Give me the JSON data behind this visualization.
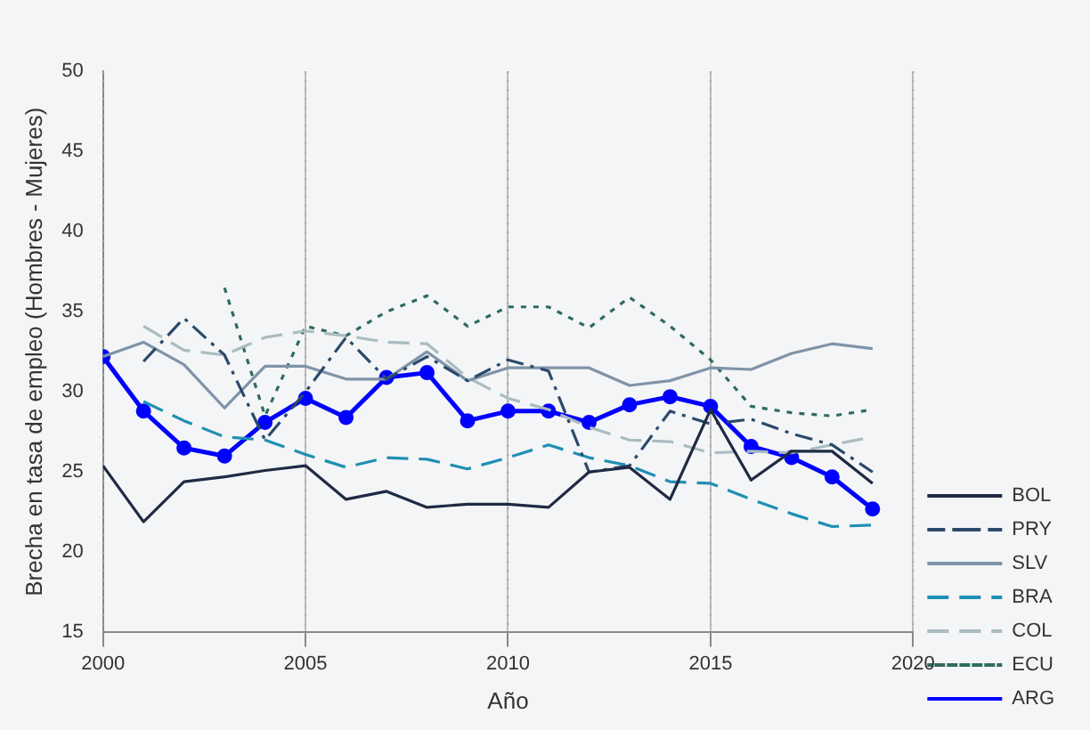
{
  "chart_data": {
    "type": "line",
    "xlabel": "Año",
    "ylabel": "Brecha en tasa de empleo (Hombres - Mujeres)",
    "x": [
      2000,
      2001,
      2002,
      2003,
      2004,
      2005,
      2006,
      2007,
      2008,
      2009,
      2010,
      2011,
      2012,
      2013,
      2014,
      2015,
      2016,
      2017,
      2018,
      2019
    ],
    "series": [
      {
        "name": "BOL",
        "color": "#1f2a44",
        "line_style": "solid",
        "values": [
          25.4,
          21.9,
          24.4,
          24.7,
          25.1,
          25.4,
          23.3,
          23.8,
          22.8,
          23.0,
          23.0,
          22.8,
          25.0,
          25.3,
          23.3,
          28.9,
          24.5,
          26.3,
          26.3,
          24.3
        ]
      },
      {
        "name": "PRY",
        "color": "#2b4a6b",
        "line_style": "dashdot",
        "values": [
          null,
          31.9,
          34.6,
          32.3,
          27.0,
          30.0,
          33.4,
          30.8,
          32.2,
          30.7,
          32.0,
          31.3,
          25.0,
          25.4,
          28.8,
          28.0,
          28.3,
          27.4,
          26.7,
          25.0
        ]
      },
      {
        "name": "SLV",
        "color": "#7f93a8",
        "line_style": "solid",
        "values": [
          32.2,
          33.1,
          31.7,
          29.0,
          31.6,
          31.6,
          30.8,
          30.8,
          32.5,
          30.7,
          31.5,
          31.5,
          31.5,
          30.4,
          30.7,
          31.5,
          31.4,
          32.4,
          33.0,
          32.7
        ]
      },
      {
        "name": "BRA",
        "color": "#1f8fb3",
        "line_style": "dashed",
        "values": [
          null,
          29.4,
          28.2,
          27.2,
          27.0,
          26.1,
          25.3,
          25.9,
          25.8,
          25.2,
          25.9,
          26.7,
          25.9,
          25.4,
          24.4,
          24.3,
          23.3,
          22.4,
          21.6,
          21.7
        ]
      },
      {
        "name": "COL",
        "color": "#a9bcc0",
        "line_style": "dashed",
        "values": [
          null,
          34.1,
          32.6,
          32.3,
          33.4,
          33.8,
          33.5,
          33.1,
          33.0,
          30.9,
          29.6,
          28.9,
          27.8,
          27.0,
          26.9,
          26.2,
          26.3,
          26.2,
          26.7,
          27.2
        ]
      },
      {
        "name": "ECU",
        "color": "#2e6b5e",
        "line_style": "dotted",
        "values": [
          null,
          null,
          null,
          36.5,
          28.5,
          34.1,
          33.5,
          35.0,
          36.0,
          34.1,
          35.3,
          35.3,
          34.0,
          35.9,
          34.1,
          32.0,
          29.1,
          28.7,
          28.5,
          28.9
        ]
      },
      {
        "name": "ARG",
        "color": "#0000ff",
        "line_style": "solid",
        "marker": "circle",
        "values": [
          32.2,
          28.8,
          26.5,
          26.0,
          28.1,
          29.6,
          28.4,
          30.9,
          31.2,
          28.2,
          28.8,
          28.8,
          28.1,
          29.2,
          29.7,
          29.1,
          26.6,
          25.9,
          24.7,
          22.7
        ]
      }
    ],
    "xlim": [
      2000,
      2020
    ],
    "xticks": [
      2000,
      2005,
      2010,
      2015,
      2020
    ],
    "ylim": [
      15,
      50
    ],
    "yticks": [
      15,
      20,
      25,
      30,
      35,
      40,
      45,
      50
    ],
    "grid": "x",
    "legend": "right"
  }
}
